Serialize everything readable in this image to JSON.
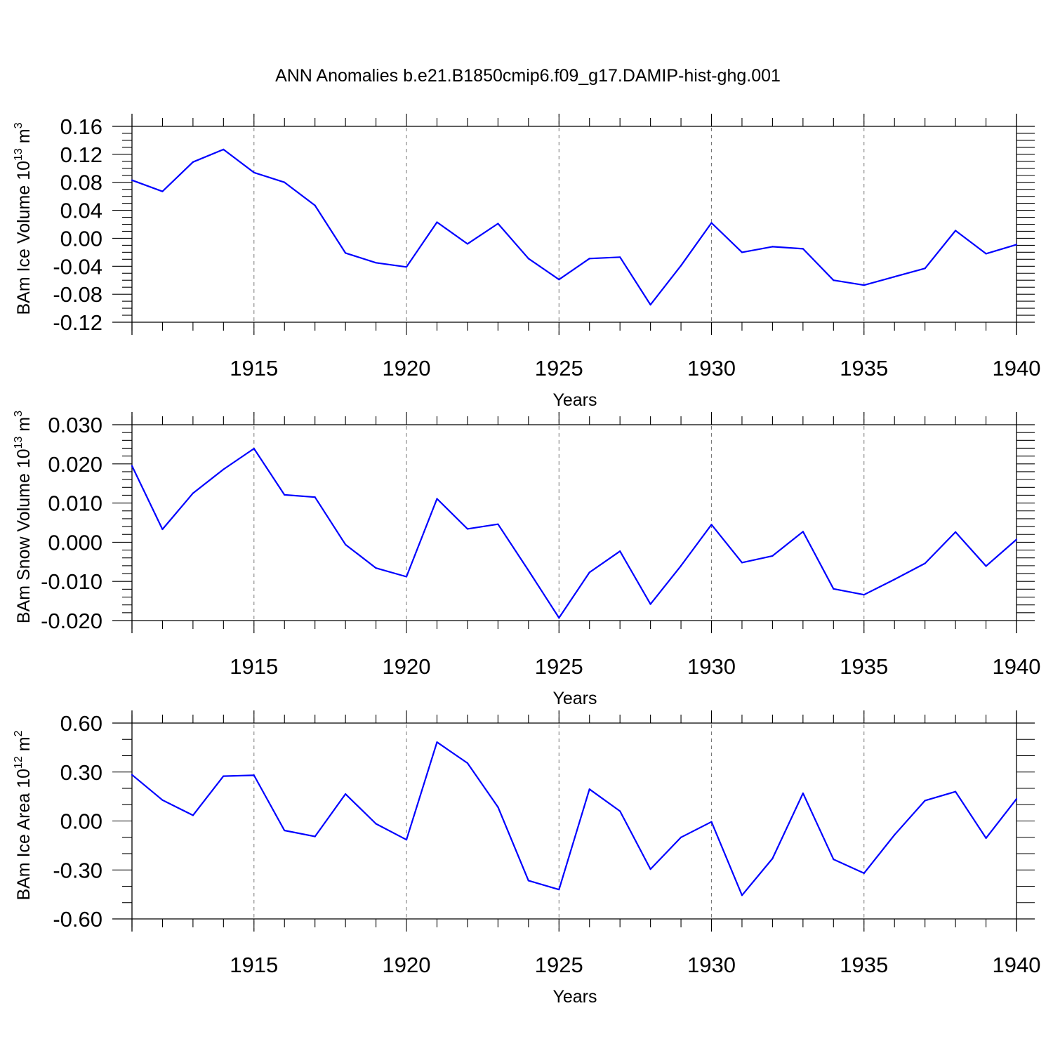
{
  "figure_title": "ANN Anomalies b.e21.B1850cmip6.f09_g17.DAMIP-hist-ghg.001",
  "line_color": "#0000ff",
  "chart_data": [
    {
      "type": "line",
      "ylabel_main": "BAm Ice Volume 10",
      "ylabel_exp": "13",
      "ylabel_unit": " m",
      "ylabel_unit_exp": "3",
      "xlabel": "Years",
      "xlim": [
        1911,
        1940
      ],
      "ylim": [
        -0.12,
        0.16
      ],
      "yticks": [
        "0.16",
        "0.12",
        "0.08",
        "0.04",
        "0.00",
        "-0.04",
        "-0.08",
        "-0.12"
      ],
      "ytick_values": [
        0.16,
        0.12,
        0.08,
        0.04,
        0.0,
        -0.04,
        -0.08,
        -0.12
      ],
      "xticks": [
        "1915",
        "1920",
        "1925",
        "1930",
        "1935",
        "1940"
      ],
      "xtick_values": [
        1915,
        1920,
        1925,
        1930,
        1935,
        1940
      ],
      "grid": "dashed vertical at labeled years",
      "x": [
        1911,
        1912,
        1913,
        1914,
        1915,
        1916,
        1917,
        1918,
        1919,
        1920,
        1921,
        1922,
        1923,
        1924,
        1925,
        1926,
        1927,
        1928,
        1929,
        1930,
        1931,
        1932,
        1933,
        1934,
        1935,
        1936,
        1937,
        1938,
        1939,
        1940
      ],
      "values": [
        0.083,
        0.067,
        0.109,
        0.127,
        0.094,
        0.08,
        0.047,
        -0.021,
        -0.035,
        -0.041,
        0.023,
        -0.008,
        0.021,
        -0.029,
        -0.059,
        -0.029,
        -0.027,
        -0.095,
        -0.039,
        0.022,
        -0.02,
        -0.012,
        -0.015,
        -0.06,
        -0.067,
        -0.055,
        -0.043,
        0.011,
        -0.022,
        -0.009
      ]
    },
    {
      "type": "line",
      "ylabel_main": "BAm Snow Volume 10",
      "ylabel_exp": "13",
      "ylabel_unit": " m",
      "ylabel_unit_exp": "3",
      "xlabel": "Years",
      "xlim": [
        1911,
        1940
      ],
      "ylim": [
        -0.02,
        0.03
      ],
      "yticks": [
        "0.030",
        "0.020",
        "0.010",
        "0.000",
        "-0.010",
        "-0.020"
      ],
      "ytick_values": [
        0.03,
        0.02,
        0.01,
        0.0,
        -0.01,
        -0.02
      ],
      "xticks": [
        "1915",
        "1920",
        "1925",
        "1930",
        "1935",
        "1940"
      ],
      "xtick_values": [
        1915,
        1920,
        1925,
        1930,
        1935,
        1940
      ],
      "grid": "dashed vertical at labeled years",
      "x": [
        1911,
        1912,
        1913,
        1914,
        1915,
        1916,
        1917,
        1918,
        1919,
        1920,
        1921,
        1922,
        1923,
        1924,
        1925,
        1926,
        1927,
        1928,
        1929,
        1930,
        1931,
        1932,
        1933,
        1934,
        1935,
        1936,
        1937,
        1938,
        1939,
        1940
      ],
      "values": [
        0.0195,
        0.0033,
        0.0125,
        0.0186,
        0.0239,
        0.0121,
        0.0115,
        -0.0006,
        -0.0066,
        -0.0088,
        0.0111,
        0.0034,
        0.0046,
        -0.0072,
        -0.0193,
        -0.0077,
        -0.0023,
        -0.0158,
        -0.006,
        0.0045,
        -0.0052,
        -0.0035,
        0.0027,
        -0.0119,
        -0.0134,
        -0.0095,
        -0.0054,
        0.0026,
        -0.0061,
        0.0007
      ]
    },
    {
      "type": "line",
      "ylabel_main": "BAm Ice Area 10",
      "ylabel_exp": "12",
      "ylabel_unit": " m",
      "ylabel_unit_exp": "2",
      "xlabel": "Years",
      "xlim": [
        1911,
        1940
      ],
      "ylim": [
        -0.6,
        0.6
      ],
      "yticks": [
        "0.60",
        "0.30",
        "0.00",
        "-0.30",
        "-0.60"
      ],
      "ytick_values": [
        0.6,
        0.3,
        0.0,
        -0.3,
        -0.6
      ],
      "xticks": [
        "1915",
        "1920",
        "1925",
        "1930",
        "1935",
        "1940"
      ],
      "xtick_values": [
        1915,
        1920,
        1925,
        1930,
        1935,
        1940
      ],
      "grid": "dashed vertical at labeled years",
      "x": [
        1911,
        1912,
        1913,
        1914,
        1915,
        1916,
        1917,
        1918,
        1919,
        1920,
        1921,
        1922,
        1923,
        1924,
        1925,
        1926,
        1927,
        1928,
        1929,
        1930,
        1931,
        1932,
        1933,
        1934,
        1935,
        1936,
        1937,
        1938,
        1939,
        1940
      ],
      "values": [
        0.283,
        0.128,
        0.035,
        0.275,
        0.28,
        -0.058,
        -0.095,
        0.165,
        -0.017,
        -0.115,
        0.483,
        0.355,
        0.085,
        -0.365,
        -0.42,
        0.195,
        0.06,
        -0.295,
        -0.1,
        -0.005,
        -0.455,
        -0.23,
        0.17,
        -0.235,
        -0.32,
        -0.085,
        0.125,
        0.18,
        -0.105,
        0.135
      ]
    }
  ]
}
